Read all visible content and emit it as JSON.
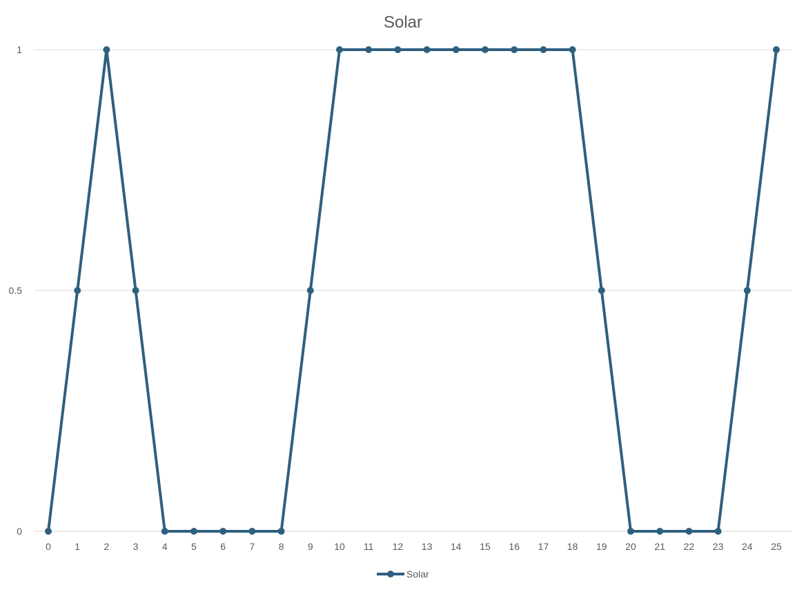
{
  "chart_data": {
    "type": "line",
    "title": "Solar",
    "xlabel": "",
    "ylabel": "",
    "categories": [
      "0",
      "1",
      "2",
      "3",
      "4",
      "5",
      "6",
      "7",
      "8",
      "9",
      "10",
      "11",
      "12",
      "13",
      "14",
      "15",
      "16",
      "17",
      "18",
      "19",
      "20",
      "21",
      "22",
      "23",
      "24",
      "25"
    ],
    "series": [
      {
        "name": "Solar",
        "color": "#2e5f7f",
        "values": [
          0,
          0.5,
          1,
          0.5,
          0,
          0,
          0,
          0,
          0,
          0.5,
          1,
          1,
          1,
          1,
          1,
          1,
          1,
          1,
          1,
          0.5,
          0,
          0,
          0,
          0,
          0.5,
          1
        ]
      }
    ],
    "ylim": [
      0,
      1
    ],
    "yticks": [
      "0",
      "0.5",
      "1"
    ],
    "ytick_values": [
      0,
      0.5,
      1
    ],
    "grid": true,
    "legend": "bottom"
  }
}
